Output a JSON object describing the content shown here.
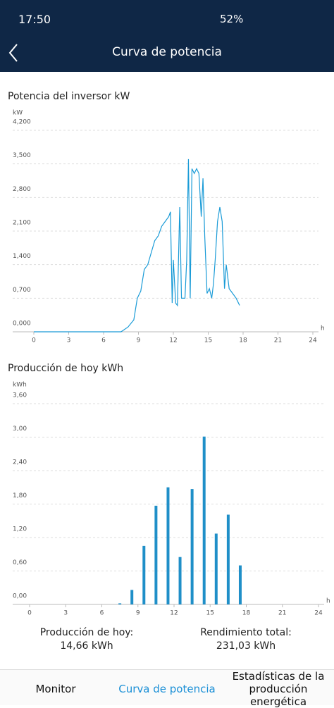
{
  "status_bar": {
    "time": "17:50",
    "battery": "52%"
  },
  "header": {
    "title": "Curva de potencia"
  },
  "chart_data": [
    {
      "type": "line",
      "title": "Potencia del inversor kW",
      "y_unit": "kW",
      "x_unit": "h",
      "color": "#1a9bd7",
      "x": [
        0,
        7.5,
        8.1,
        8.6,
        8.9,
        9.2,
        9.5,
        9.8,
        10.1,
        10.4,
        10.7,
        11.0,
        11.3,
        11.6,
        11.75,
        11.9,
        12.0,
        12.2,
        12.35,
        12.55,
        12.7,
        13.0,
        13.15,
        13.3,
        13.45,
        13.6,
        13.8,
        14.0,
        14.2,
        14.4,
        14.55,
        14.7,
        14.9,
        15.1,
        15.3,
        15.45,
        15.6,
        15.8,
        16.0,
        16.2,
        16.4,
        16.55,
        16.8,
        17.1,
        17.4,
        17.7
      ],
      "values": [
        0,
        0,
        0.1,
        0.25,
        0.7,
        0.85,
        1.3,
        1.4,
        1.65,
        1.9,
        2.0,
        2.2,
        2.3,
        2.4,
        2.5,
        0.6,
        1.5,
        0.6,
        0.55,
        2.6,
        0.7,
        0.7,
        1.5,
        3.6,
        0.7,
        3.4,
        3.3,
        3.4,
        3.3,
        2.4,
        3.2,
        2.0,
        0.8,
        0.9,
        0.7,
        1.0,
        1.5,
        2.3,
        2.6,
        2.3,
        0.9,
        1.4,
        0.9,
        0.8,
        0.7,
        0.55
      ],
      "xlim": [
        0,
        24
      ],
      "xticks": [
        0,
        3,
        6,
        9,
        12,
        15,
        18,
        21,
        24
      ],
      "ylim": [
        0,
        4.2
      ],
      "yticks": [
        {
          "value": 0,
          "label": "0,000"
        },
        {
          "value": 0.7,
          "label": "0,700"
        },
        {
          "value": 1.4,
          "label": "1,400"
        },
        {
          "value": 2.1,
          "label": "2,100"
        },
        {
          "value": 2.8,
          "label": "2,800"
        },
        {
          "value": 3.5,
          "label": "3,500"
        },
        {
          "value": 4.2,
          "label": "4,200"
        }
      ],
      "grid": true
    },
    {
      "type": "bar",
      "title": "Producción de hoy kWh",
      "y_unit": "kWh",
      "x_unit": "h",
      "color": "#1f8fc8",
      "x": [
        7.5,
        8.5,
        9.5,
        10.5,
        11.5,
        12.5,
        13.5,
        14.5,
        15.5,
        16.5,
        17.5
      ],
      "values": [
        0.02,
        0.26,
        1.05,
        1.77,
        2.1,
        0.85,
        2.07,
        3.01,
        1.27,
        1.61,
        0.7
      ],
      "xlim": [
        0,
        24
      ],
      "xticks": [
        0,
        3,
        6,
        9,
        12,
        15,
        18,
        21,
        24
      ],
      "ylim": [
        0,
        3.6
      ],
      "yticks": [
        {
          "value": 0,
          "label": "0,00"
        },
        {
          "value": 0.6,
          "label": "0,60"
        },
        {
          "value": 1.2,
          "label": "1,20"
        },
        {
          "value": 1.8,
          "label": "1,80"
        },
        {
          "value": 2.4,
          "label": "2,40"
        },
        {
          "value": 3.0,
          "label": "3,00"
        },
        {
          "value": 3.6,
          "label": "3,60"
        }
      ],
      "grid": true
    }
  ],
  "summary": {
    "today_label": "Producción de hoy:",
    "today_value": "14,66 kWh",
    "total_label": "Rendimiento total:",
    "total_value": "231,03 kWh"
  },
  "tabs": [
    "Monitor",
    "Curva de potencia",
    "Estadísticas de la producción energética"
  ]
}
